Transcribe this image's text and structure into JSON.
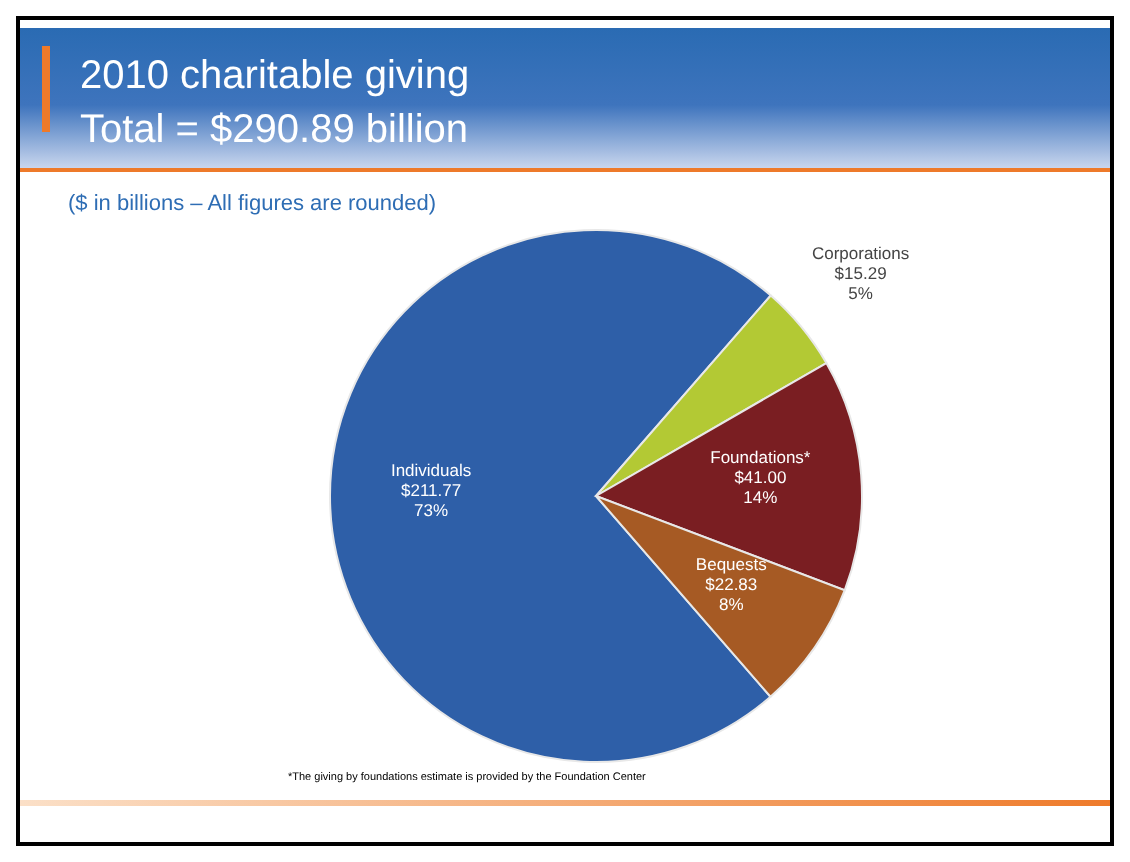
{
  "chart_data": {
    "type": "pie",
    "title": "2010 charitable giving",
    "subtitle": "Total = $290.89 billion",
    "categories": [
      "Individuals",
      "Corporations",
      "Foundations*",
      "Bequests"
    ],
    "values": [
      211.77,
      15.29,
      41.0,
      22.83
    ],
    "colors": [
      "#2e5fa8",
      "#b3c934",
      "#7a1e22",
      "#a65a24"
    ],
    "value_labels": [
      "$211.77\n73%",
      "$15.29\n5%",
      "$41.00\n14%",
      "$22.83\n8%"
    ],
    "annotations": [
      "($ in billions – All figures are rounded)",
      "*The giving by foundations estimate is provided by the Foundation Center"
    ],
    "legend": false
  }
}
